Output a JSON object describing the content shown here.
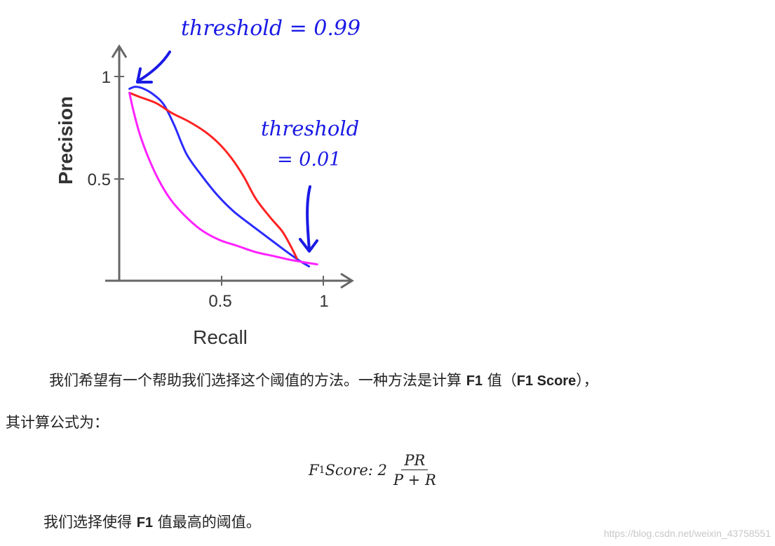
{
  "chart_data": {
    "type": "line",
    "xlabel": "Recall",
    "ylabel": "Precision",
    "x_ticks": [
      "0.5",
      "1"
    ],
    "y_ticks": [
      "1",
      "0.5"
    ],
    "xlim": [
      0,
      1.1
    ],
    "ylim": [
      0,
      1.1
    ],
    "series": [
      {
        "color": "#2b2bff",
        "x": [
          0.05,
          0.08,
          0.12,
          0.17,
          0.22,
          0.27,
          0.33,
          0.4,
          0.48,
          0.56,
          0.65,
          0.73,
          0.81,
          0.88,
          0.93
        ],
        "y": [
          0.94,
          0.95,
          0.94,
          0.91,
          0.86,
          0.76,
          0.62,
          0.52,
          0.42,
          0.34,
          0.27,
          0.21,
          0.15,
          0.1,
          0.07
        ]
      },
      {
        "color": "#ff2222",
        "x": [
          0.05,
          0.1,
          0.18,
          0.26,
          0.34,
          0.42,
          0.49,
          0.55,
          0.61,
          0.67,
          0.74,
          0.8,
          0.84,
          0.87
        ],
        "y": [
          0.92,
          0.9,
          0.87,
          0.82,
          0.78,
          0.73,
          0.67,
          0.6,
          0.51,
          0.4,
          0.31,
          0.24,
          0.17,
          0.11
        ]
      },
      {
        "color": "#ff22ff",
        "x": [
          0.05,
          0.07,
          0.1,
          0.14,
          0.19,
          0.25,
          0.32,
          0.4,
          0.49,
          0.58,
          0.67,
          0.76,
          0.85,
          0.97
        ],
        "y": [
          0.92,
          0.83,
          0.72,
          0.61,
          0.5,
          0.4,
          0.32,
          0.25,
          0.2,
          0.17,
          0.14,
          0.12,
          0.1,
          0.08
        ]
      }
    ],
    "annotations": [
      {
        "text": "threshold = 0.99",
        "color": "#1a1ae6"
      },
      {
        "text": "threshold",
        "color": "#1a1ae6"
      },
      {
        "text": "= 0.01",
        "color": "#1a1ae6"
      }
    ]
  },
  "text": {
    "para1_pre": "我们希望有一个帮助我们选择这个阈值的方法。一种方法是计算 ",
    "para1_bold1": "F1",
    "para1_mid": " 值（",
    "para1_bold2": "F1 Score",
    "para1_post": "），",
    "para2": "其计算公式为：",
    "formula_f": "F",
    "formula_sub": "1",
    "formula_mid": "Score: 2",
    "formula_num": "PR",
    "formula_den": "P + R",
    "para3_pre": "我们选择使得 ",
    "para3_bold": "F1",
    "para3_post": " 值最高的阈值。",
    "watermark": "https://blog.csdn.net/weixin_43758551"
  }
}
